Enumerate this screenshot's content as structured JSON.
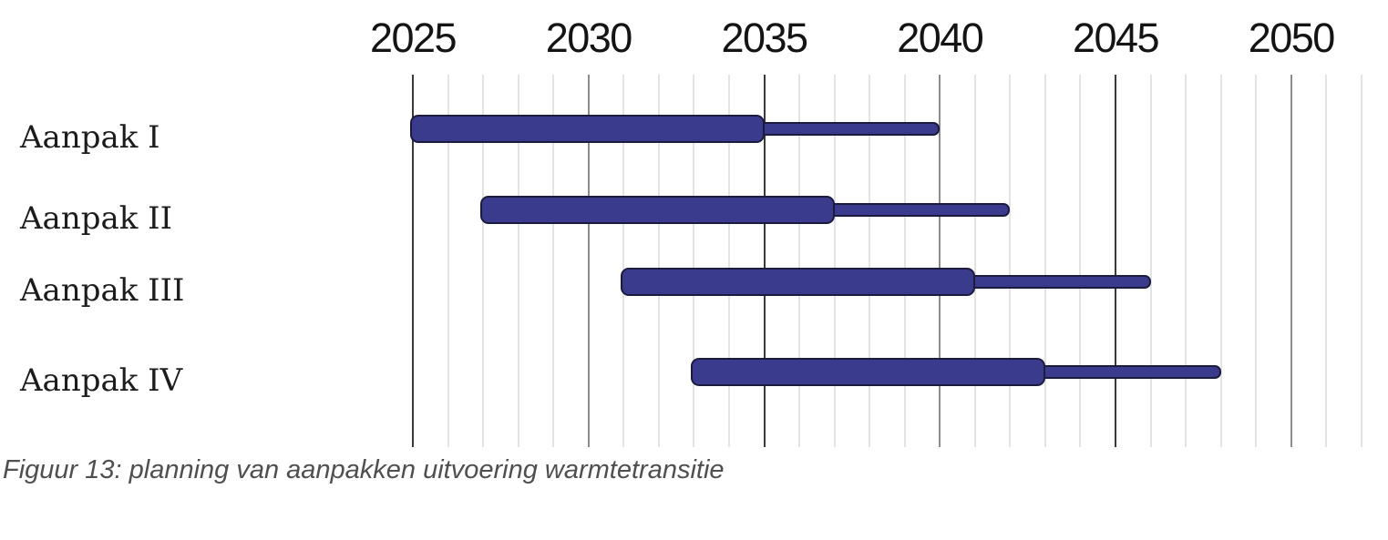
{
  "caption": "Figuur 13: planning van aanpakken uitvoering warmtetransitie",
  "chart_data": {
    "type": "bar",
    "subtype": "gantt-range-timeline",
    "title": "",
    "xlabel": "",
    "ylabel": "",
    "xlim": [
      2025,
      2052
    ],
    "grid": "vertical, one line per year; darker lines every 5 years",
    "x_ticks": [
      2025,
      2030,
      2035,
      2040,
      2045,
      2050
    ],
    "x_tick_labels": [
      "2025",
      "2030",
      "2035",
      "2040",
      "2045",
      "2050"
    ],
    "dark_lines": [
      2025,
      2035,
      2045
    ],
    "mid_lines": [
      2030,
      2040,
      2050
    ],
    "legend_position": "none",
    "rows": [
      {
        "label": "Aanpak I",
        "solid_start": 2025,
        "solid_end": 2035,
        "thin_end": 2040
      },
      {
        "label": "Aanpak II",
        "solid_start": 2027,
        "solid_end": 2037,
        "thin_end": 2042
      },
      {
        "label": "Aanpak III",
        "solid_start": 2031,
        "solid_end": 2041,
        "thin_end": 2046
      },
      {
        "label": "Aanpak IV",
        "solid_start": 2033,
        "solid_end": 2043,
        "thin_end": 2048
      }
    ],
    "colors": {
      "bar_fill": "#3b3b8e",
      "bar_border": "#1b1b3d",
      "grid_minor": "#e4e4e4",
      "grid_mid": "#8d8d8d",
      "grid_major": "#3a3a3a",
      "tick_label": "#141414",
      "row_label": "#1c1c1c",
      "caption": "#4f4f4f",
      "background": "#ffffff"
    }
  }
}
